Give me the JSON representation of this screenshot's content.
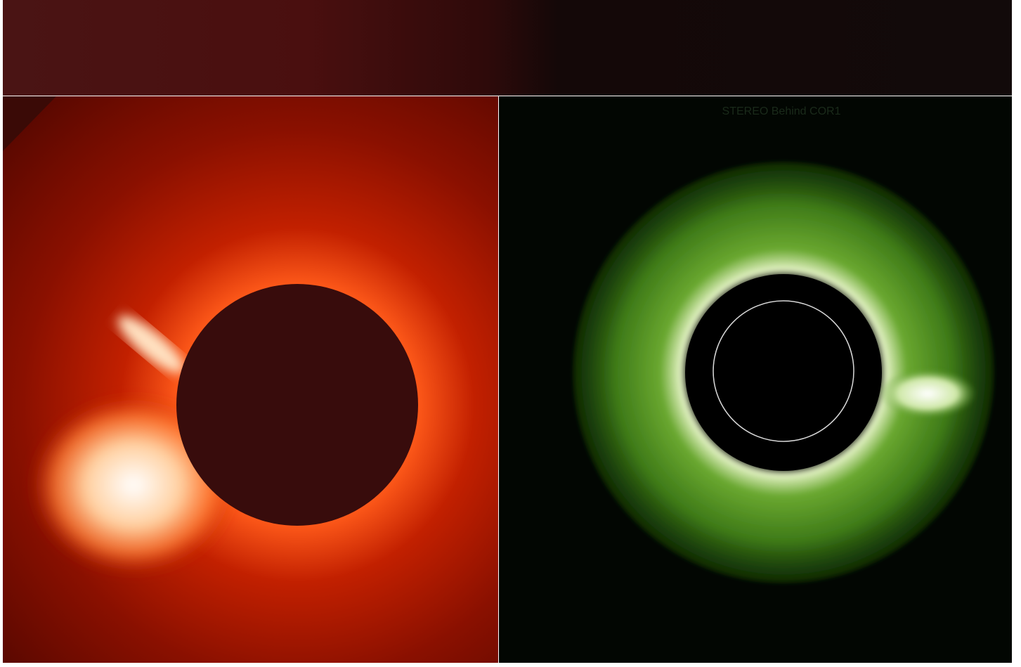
{
  "right_panel": {
    "label": "STEREO Behind COR1"
  }
}
